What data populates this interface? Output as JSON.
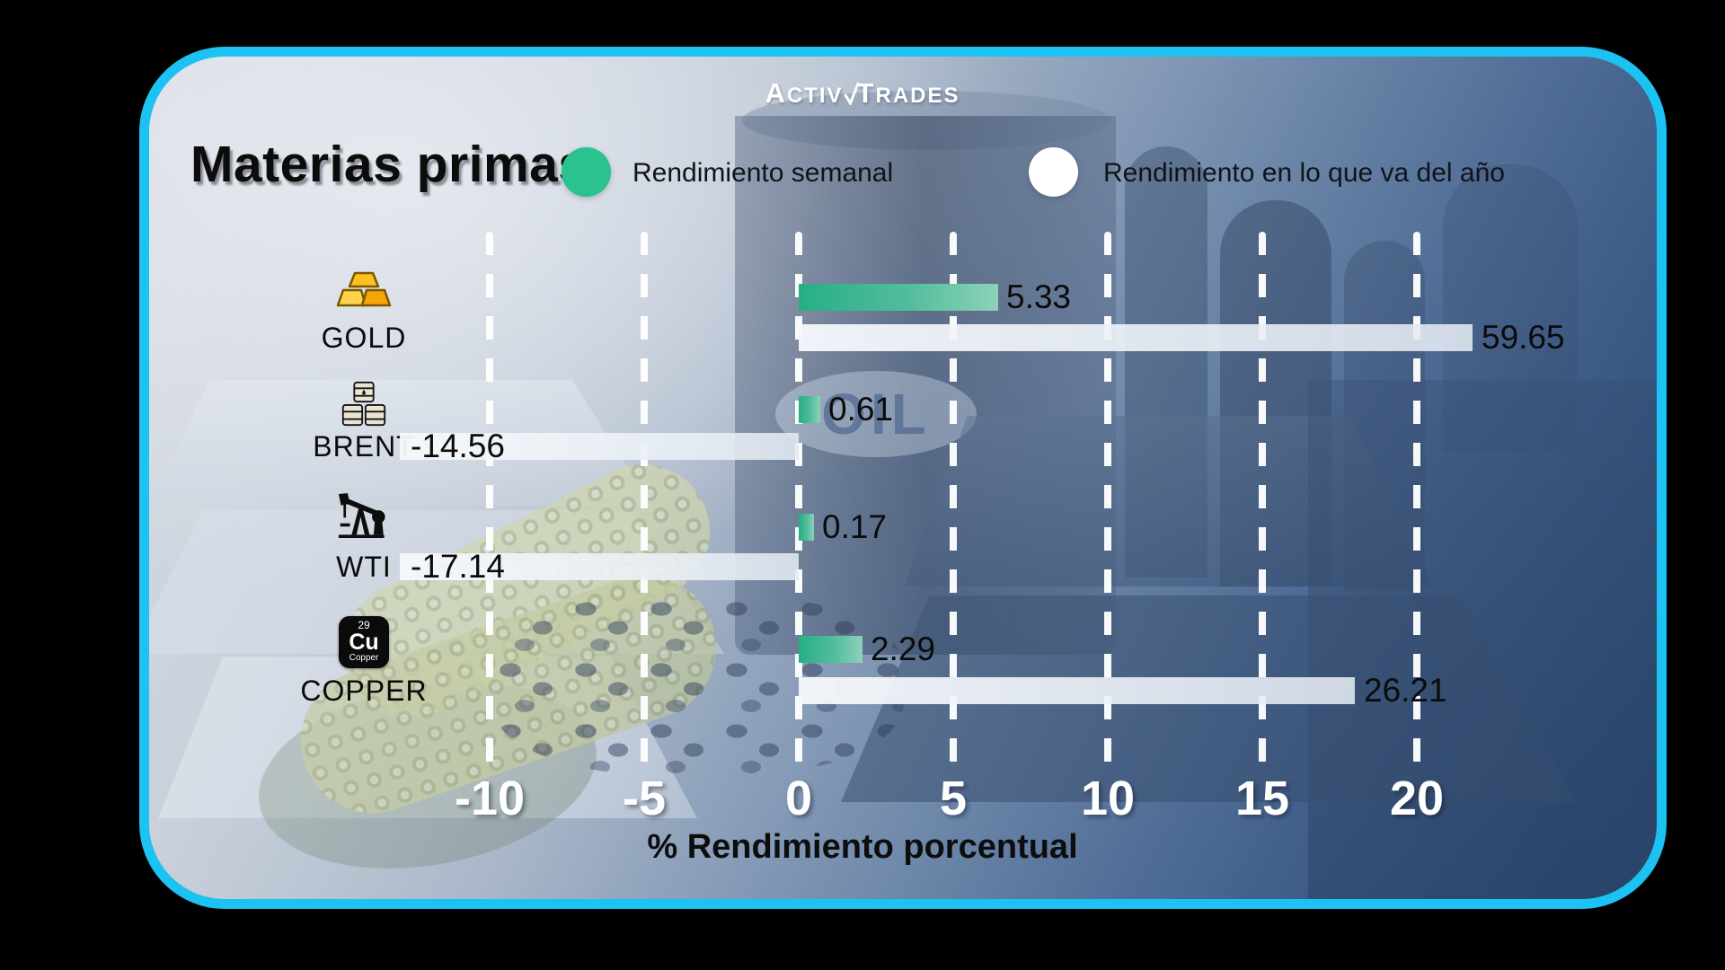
{
  "brand": {
    "left": "Activ",
    "right": "Trades"
  },
  "title": "Materias primas",
  "legend": [
    {
      "label": "Rendimiento semanal",
      "color": "#2ac28e"
    },
    {
      "label": "Rendimiento en lo que va del año",
      "color": "#ffffff"
    }
  ],
  "background": {
    "oil_text": "OIL"
  },
  "icons": {
    "copper_tile": {
      "number": "29",
      "symbol": "Cu",
      "name": "Copper"
    }
  },
  "chart_data": {
    "type": "bar",
    "orientation": "horizontal",
    "title": "Materias primas",
    "xlabel": "% Rendimiento porcentual",
    "x_ticks": [
      -10,
      -5,
      0,
      5,
      10,
      15,
      20
    ],
    "xlim": [
      -12.9,
      21.8
    ],
    "grid": "vertical-dashed-white",
    "legend_position": "top",
    "value_labels": true,
    "categories": [
      "GOLD",
      "BRENT",
      "WTI",
      "COPPER"
    ],
    "category_icons": [
      "gold-bars",
      "oil-barrels",
      "pump-jack",
      "copper-element"
    ],
    "series": [
      {
        "name": "Rendimiento semanal",
        "color": "#2ac28e",
        "values": [
          5.33,
          0.61,
          0.17,
          2.29
        ]
      },
      {
        "name": "Rendimiento en lo que va del año",
        "color": "#f2f6fa",
        "values": [
          59.65,
          -14.56,
          -17.14,
          26.21
        ]
      }
    ],
    "bars_clipped_to_plot": true,
    "rendered_bar_units": {
      "weekly": [
        6.45,
        0.7,
        0.5,
        2.05
      ],
      "ytd": [
        21.8,
        -12.9,
        -12.9,
        18.0
      ]
    }
  }
}
